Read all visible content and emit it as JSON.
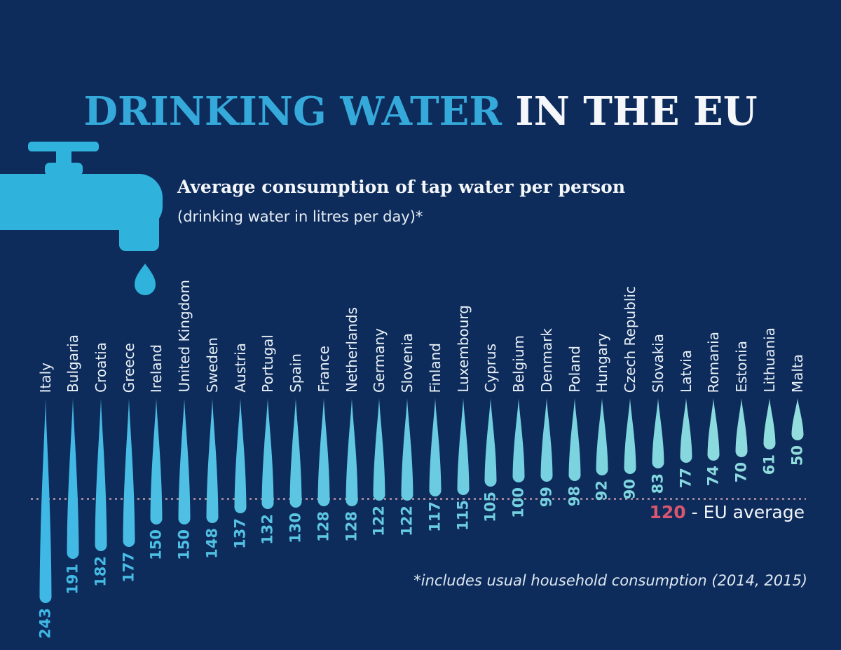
{
  "page": {
    "background": "#0d2c5c"
  },
  "title": {
    "part1": "DRINKING WATER",
    "part2": " IN THE EU"
  },
  "subtitle": {
    "heading": "Average consumption of tap water per person",
    "subheading": "(drinking water in litres per day)*"
  },
  "icons": {
    "tap": "faucet-with-two-water-drops"
  },
  "eu_average": {
    "value": "120",
    "label": " - EU average"
  },
  "footnote": "*includes usual household consumption (2014, 2015)",
  "chart_data": {
    "type": "bar",
    "style": "inverted-teardrop-columns-hanging-downward",
    "title": "Average consumption of tap water per person",
    "unit": "litres per day",
    "categories": [
      "Italy",
      "Bulgaria",
      "Croatia",
      "Greece",
      "Ireland",
      "United Kingdom",
      "Sweden",
      "Austria",
      "Portugal",
      "Spain",
      "France",
      "Netherlands",
      "Germany",
      "Slovenia",
      "Finland",
      "Luxembourg",
      "Cyprus",
      "Belgium",
      "Denmark",
      "Poland",
      "Hungary",
      "Czech Republic",
      "Slovakia",
      "Latvia",
      "Romania",
      "Estonia",
      "Lithuania",
      "Malta"
    ],
    "values": [
      243,
      191,
      182,
      177,
      150,
      150,
      148,
      137,
      132,
      130,
      128,
      128,
      122,
      122,
      117,
      115,
      105,
      100,
      99,
      98,
      92,
      90,
      83,
      77,
      74,
      70,
      61,
      50
    ],
    "reference_line": {
      "value": 120,
      "label": "EU average"
    },
    "legend_position": "none",
    "grid": false,
    "colors": {
      "drop_start": "#3fb8e5",
      "drop_end": "#93dedd",
      "tap_blue": "#2fb3dd",
      "tap_drop_small": "#7fcfd4",
      "title_accent": "#35a9da",
      "text_light": "#eaf2f8",
      "average_line": "#a08598",
      "average_value": "#d8566e",
      "background": "#0d2c5c"
    }
  }
}
